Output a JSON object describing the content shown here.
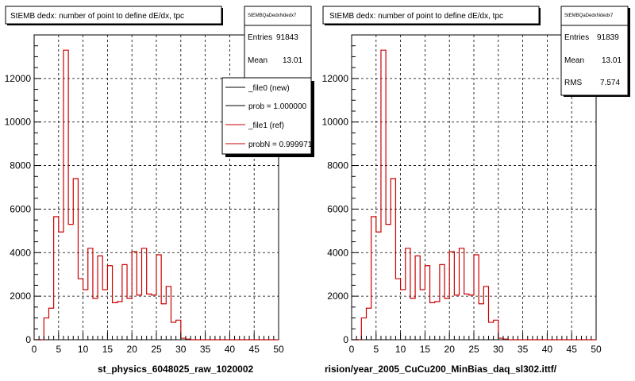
{
  "chart_data": [
    {
      "type": "bar",
      "title": "StEMB dedx: number of point to define dE/dx, tpc",
      "xlabel": "st_physics_6048025_raw_1020002",
      "ylabel": "",
      "xlim": [
        0,
        50
      ],
      "ylim": [
        0,
        14000
      ],
      "x_ticks": [
        0,
        5,
        10,
        15,
        20,
        25,
        30,
        35,
        40,
        45,
        50
      ],
      "y_ticks": [
        0,
        2000,
        4000,
        6000,
        8000,
        10000,
        12000
      ],
      "grid": true,
      "bin_edges_start": 0,
      "bin_width": 1,
      "stats": {
        "name": "StEMBQaDedxNdedx7",
        "entries_label": "Entries",
        "entries_value": "91843",
        "mean_label": "Mean",
        "mean_value": "13.01"
      },
      "legend": {
        "placement": "top-right",
        "entries": [
          {
            "label": "_file0 (new)",
            "color": "#000000"
          },
          {
            "label": "prob = 1.000000",
            "color": "#000000"
          },
          {
            "label": "_file1 (ref)",
            "color": "#cc0000"
          },
          {
            "label": "probN = 0.999971",
            "color": "#cc0000"
          }
        ]
      },
      "series": [
        {
          "color": "#cc0000",
          "values": [
            0,
            0,
            1000,
            1450,
            5650,
            4950,
            13300,
            5300,
            7400,
            2800,
            2300,
            4200,
            1900,
            3850,
            2300,
            3400,
            1700,
            1750,
            3450,
            1900,
            4050,
            2050,
            4200,
            2100,
            2050,
            3900,
            1650,
            2450,
            800,
            900,
            70,
            30,
            0,
            0,
            0,
            0,
            0,
            0,
            0,
            0,
            0,
            0,
            0,
            0,
            0,
            0,
            0,
            0,
            0,
            0
          ]
        }
      ]
    },
    {
      "type": "bar",
      "title": "StEMB dedx: number of point to define dE/dx, tpc",
      "xlabel": "rision/year_2005_CuCu200_MinBias_daq_sl302.ittf/",
      "ylabel": "",
      "xlim": [
        0,
        50
      ],
      "ylim": [
        0,
        14000
      ],
      "x_ticks": [
        0,
        5,
        10,
        15,
        20,
        25,
        30,
        35,
        40,
        45,
        50
      ],
      "y_ticks": [
        0,
        2000,
        4000,
        6000,
        8000,
        10000,
        12000
      ],
      "grid": true,
      "bin_edges_start": 0,
      "bin_width": 1,
      "stats": {
        "name": "StEMBQaDedxNdedx7",
        "entries_label": "Entries",
        "entries_value": "91839",
        "mean_label": "Mean",
        "mean_value": "13.01",
        "rms_label": "RMS",
        "rms_value": "7.574"
      },
      "series": [
        {
          "color": "#cc0000",
          "values": [
            0,
            0,
            1000,
            1450,
            5650,
            4950,
            13300,
            5300,
            7400,
            2800,
            2300,
            4200,
            1900,
            3850,
            2300,
            3400,
            1700,
            1750,
            3450,
            1900,
            4050,
            2050,
            4200,
            2100,
            2050,
            3900,
            1650,
            2450,
            800,
            900,
            70,
            30,
            0,
            0,
            0,
            0,
            0,
            0,
            0,
            0,
            0,
            0,
            0,
            0,
            0,
            0,
            0,
            0,
            0,
            0
          ]
        }
      ]
    }
  ]
}
